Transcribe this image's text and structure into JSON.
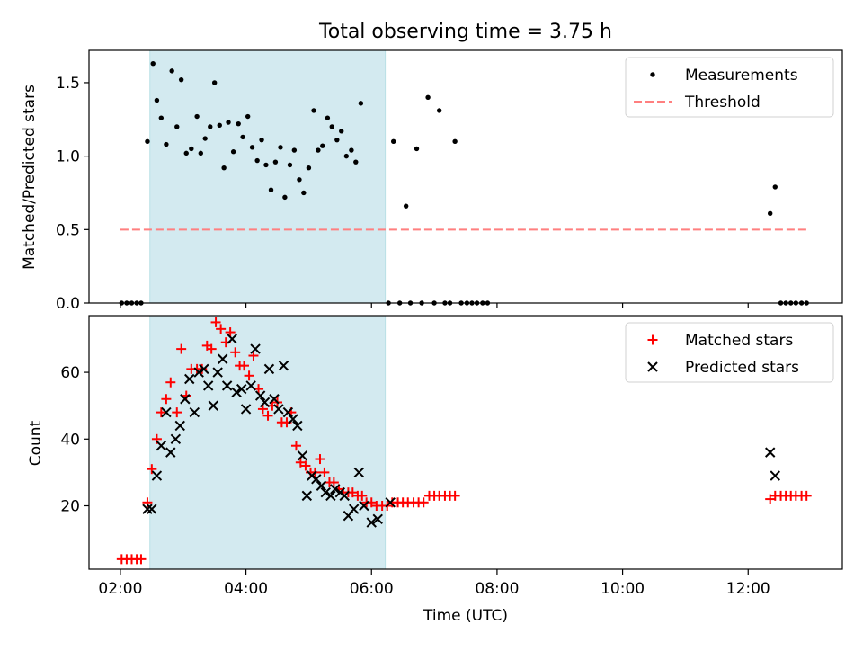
{
  "figure": {
    "title": "Total observing time = 3.75 h"
  },
  "chart_data": [
    {
      "type": "scatter",
      "panel": "top",
      "ylabel": "Matched/Predicted stars",
      "xlabel": "",
      "x_unit": "hours (UTC)",
      "xlim": [
        1.5,
        13.5
      ],
      "ylim": [
        0,
        1.72
      ],
      "yticks": [
        0.0,
        0.5,
        1.0,
        1.5
      ],
      "ytick_labels": [
        "0.0",
        "0.5",
        "1.0",
        "1.5"
      ],
      "shaded_span": [
        2.47,
        6.22
      ],
      "shaded_color": "#d3eaf0",
      "legend": {
        "position": "top-right",
        "entries": [
          {
            "label": "Measurements",
            "marker": "dot",
            "color": "#000000"
          },
          {
            "label": "Threshold",
            "marker": "dashed-line",
            "color": "#ff7f7f"
          }
        ]
      },
      "threshold": {
        "y": 0.5,
        "x_range": [
          2.0,
          12.95
        ],
        "color": "#ff7f7f"
      },
      "series": [
        {
          "name": "Measurements",
          "color": "#000000",
          "points": [
            [
              2.02,
              0
            ],
            [
              2.1,
              0
            ],
            [
              2.18,
              0
            ],
            [
              2.26,
              0
            ],
            [
              2.33,
              0
            ],
            [
              2.43,
              1.1
            ],
            [
              2.52,
              1.63
            ],
            [
              2.58,
              1.38
            ],
            [
              2.65,
              1.26
            ],
            [
              2.73,
              1.08
            ],
            [
              2.82,
              1.58
            ],
            [
              2.9,
              1.2
            ],
            [
              2.97,
              1.52
            ],
            [
              3.05,
              1.02
            ],
            [
              3.13,
              1.05
            ],
            [
              3.22,
              1.27
            ],
            [
              3.28,
              1.02
            ],
            [
              3.35,
              1.12
            ],
            [
              3.43,
              1.2
            ],
            [
              3.5,
              1.5
            ],
            [
              3.58,
              1.21
            ],
            [
              3.65,
              0.92
            ],
            [
              3.72,
              1.23
            ],
            [
              3.8,
              1.03
            ],
            [
              3.88,
              1.22
            ],
            [
              3.95,
              1.13
            ],
            [
              4.03,
              1.27
            ],
            [
              4.1,
              1.06
            ],
            [
              4.18,
              0.97
            ],
            [
              4.25,
              1.11
            ],
            [
              4.32,
              0.94
            ],
            [
              4.4,
              0.77
            ],
            [
              4.47,
              0.96
            ],
            [
              4.55,
              1.06
            ],
            [
              4.62,
              0.72
            ],
            [
              4.7,
              0.94
            ],
            [
              4.77,
              1.04
            ],
            [
              4.85,
              0.84
            ],
            [
              4.92,
              0.75
            ],
            [
              5.0,
              0.92
            ],
            [
              5.08,
              1.31
            ],
            [
              5.15,
              1.04
            ],
            [
              5.22,
              1.07
            ],
            [
              5.3,
              1.26
            ],
            [
              5.37,
              1.2
            ],
            [
              5.45,
              1.11
            ],
            [
              5.52,
              1.17
            ],
            [
              5.6,
              1.0
            ],
            [
              5.68,
              1.04
            ],
            [
              5.75,
              0.96
            ],
            [
              5.83,
              1.36
            ],
            [
              6.27,
              0
            ],
            [
              6.35,
              1.1
            ],
            [
              6.45,
              0
            ],
            [
              6.55,
              0.66
            ],
            [
              6.62,
              0
            ],
            [
              6.72,
              1.05
            ],
            [
              6.8,
              0
            ],
            [
              6.9,
              1.4
            ],
            [
              7.0,
              0
            ],
            [
              7.08,
              1.31
            ],
            [
              7.17,
              0
            ],
            [
              7.25,
              0
            ],
            [
              7.33,
              1.1
            ],
            [
              7.43,
              0
            ],
            [
              7.52,
              0
            ],
            [
              7.6,
              0
            ],
            [
              7.68,
              0
            ],
            [
              7.77,
              0
            ],
            [
              7.85,
              0
            ],
            [
              12.35,
              0.61
            ],
            [
              12.43,
              0.79
            ],
            [
              12.52,
              0
            ],
            [
              12.6,
              0
            ],
            [
              12.68,
              0
            ],
            [
              12.76,
              0
            ],
            [
              12.85,
              0
            ],
            [
              12.93,
              0
            ]
          ]
        }
      ]
    },
    {
      "type": "scatter",
      "panel": "bottom",
      "ylabel": "Count",
      "xlabel": "Time (UTC)",
      "x_unit": "hours (UTC)",
      "xlim": [
        1.5,
        13.5
      ],
      "ylim": [
        1,
        77
      ],
      "xticks": [
        2,
        4,
        6,
        8,
        10,
        12
      ],
      "xtick_labels": [
        "02:00",
        "04:00",
        "06:00",
        "08:00",
        "10:00",
        "12:00"
      ],
      "yticks": [
        20,
        40,
        60
      ],
      "ytick_labels": [
        "20",
        "40",
        "60"
      ],
      "shaded_span": [
        2.47,
        6.22
      ],
      "shaded_color": "#d3eaf0",
      "legend": {
        "position": "top-right",
        "entries": [
          {
            "label": "Matched stars",
            "marker": "plus",
            "color": "#ff0000"
          },
          {
            "label": "Predicted stars",
            "marker": "x",
            "color": "#000000"
          }
        ]
      },
      "series": [
        {
          "name": "Matched stars",
          "marker": "plus",
          "color": "#ff0000",
          "points": [
            [
              2.02,
              4
            ],
            [
              2.1,
              4
            ],
            [
              2.18,
              4
            ],
            [
              2.26,
              4
            ],
            [
              2.33,
              4
            ],
            [
              2.43,
              21
            ],
            [
              2.5,
              31
            ],
            [
              2.58,
              40
            ],
            [
              2.65,
              48
            ],
            [
              2.73,
              52
            ],
            [
              2.8,
              57
            ],
            [
              2.9,
              48
            ],
            [
              2.97,
              67
            ],
            [
              3.05,
              53
            ],
            [
              3.13,
              61
            ],
            [
              3.22,
              61
            ],
            [
              3.3,
              61
            ],
            [
              3.38,
              68
            ],
            [
              3.45,
              67
            ],
            [
              3.52,
              75
            ],
            [
              3.6,
              73
            ],
            [
              3.68,
              69
            ],
            [
              3.75,
              72
            ],
            [
              3.83,
              66
            ],
            [
              3.9,
              62
            ],
            [
              3.97,
              62
            ],
            [
              4.05,
              59
            ],
            [
              4.12,
              65
            ],
            [
              4.2,
              55
            ],
            [
              4.27,
              49
            ],
            [
              4.35,
              47
            ],
            [
              4.42,
              50
            ],
            [
              4.5,
              51
            ],
            [
              4.57,
              45
            ],
            [
              4.65,
              45
            ],
            [
              4.72,
              48
            ],
            [
              4.8,
              38
            ],
            [
              4.87,
              33
            ],
            [
              4.95,
              32
            ],
            [
              5.03,
              30
            ],
            [
              5.1,
              30
            ],
            [
              5.18,
              34
            ],
            [
              5.25,
              30
            ],
            [
              5.33,
              27
            ],
            [
              5.4,
              27
            ],
            [
              5.48,
              25
            ],
            [
              5.55,
              24
            ],
            [
              5.63,
              24
            ],
            [
              5.7,
              24
            ],
            [
              5.78,
              23
            ],
            [
              5.85,
              23
            ],
            [
              5.92,
              21
            ],
            [
              6.0,
              21
            ],
            [
              6.08,
              20
            ],
            [
              6.17,
              20
            ],
            [
              6.25,
              20
            ],
            [
              6.33,
              21
            ],
            [
              6.42,
              21
            ],
            [
              6.5,
              21
            ],
            [
              6.58,
              21
            ],
            [
              6.67,
              21
            ],
            [
              6.75,
              21
            ],
            [
              6.83,
              21
            ],
            [
              6.92,
              23
            ],
            [
              7.0,
              23
            ],
            [
              7.08,
              23
            ],
            [
              7.17,
              23
            ],
            [
              7.25,
              23
            ],
            [
              7.33,
              23
            ],
            [
              12.35,
              22
            ],
            [
              12.43,
              23
            ],
            [
              12.52,
              23
            ],
            [
              12.6,
              23
            ],
            [
              12.68,
              23
            ],
            [
              12.76,
              23
            ],
            [
              12.85,
              23
            ],
            [
              12.93,
              23
            ]
          ]
        },
        {
          "name": "Predicted stars",
          "marker": "x",
          "color": "#000000",
          "points": [
            [
              2.43,
              19
            ],
            [
              2.5,
              19
            ],
            [
              2.58,
              29
            ],
            [
              2.65,
              38
            ],
            [
              2.73,
              48
            ],
            [
              2.8,
              36
            ],
            [
              2.88,
              40
            ],
            [
              2.95,
              44
            ],
            [
              3.03,
              52
            ],
            [
              3.1,
              58
            ],
            [
              3.18,
              48
            ],
            [
              3.25,
              60
            ],
            [
              3.33,
              61
            ],
            [
              3.4,
              56
            ],
            [
              3.48,
              50
            ],
            [
              3.55,
              60
            ],
            [
              3.63,
              64
            ],
            [
              3.7,
              56
            ],
            [
              3.78,
              70
            ],
            [
              3.85,
              54
            ],
            [
              3.93,
              55
            ],
            [
              4.0,
              49
            ],
            [
              4.08,
              56
            ],
            [
              4.15,
              67
            ],
            [
              4.23,
              53
            ],
            [
              4.3,
              51
            ],
            [
              4.37,
              61
            ],
            [
              4.45,
              52
            ],
            [
              4.52,
              49
            ],
            [
              4.6,
              62
            ],
            [
              4.67,
              48
            ],
            [
              4.75,
              46
            ],
            [
              4.82,
              44
            ],
            [
              4.9,
              35
            ],
            [
              4.97,
              23
            ],
            [
              5.05,
              29
            ],
            [
              5.12,
              28
            ],
            [
              5.2,
              26
            ],
            [
              5.27,
              24
            ],
            [
              5.35,
              23
            ],
            [
              5.42,
              25
            ],
            [
              5.5,
              24
            ],
            [
              5.57,
              23
            ],
            [
              5.63,
              17
            ],
            [
              5.72,
              19
            ],
            [
              5.8,
              30
            ],
            [
              5.88,
              20
            ],
            [
              6.0,
              15
            ],
            [
              6.1,
              16
            ],
            [
              6.3,
              21
            ],
            [
              12.35,
              36
            ],
            [
              12.43,
              29
            ]
          ]
        }
      ]
    }
  ]
}
